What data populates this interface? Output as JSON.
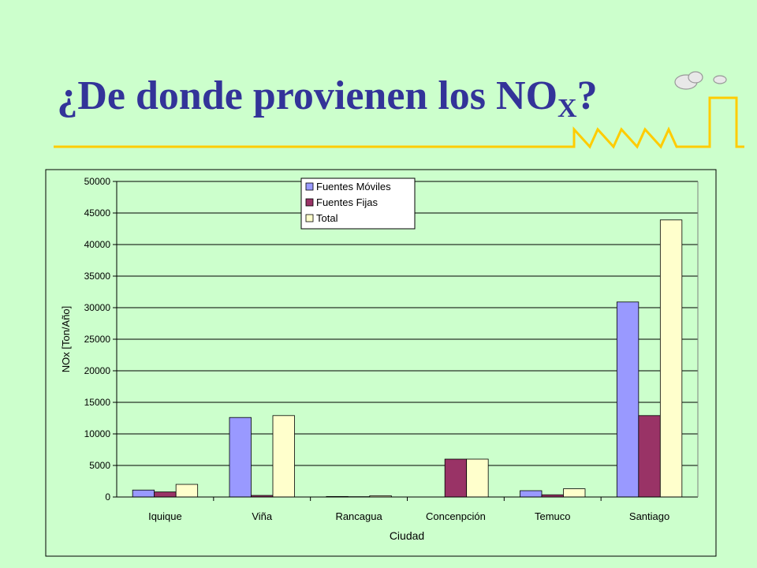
{
  "slide": {
    "title_main": "¿De donde provienen los NO",
    "title_sub": "X",
    "title_end": "?",
    "colors": {
      "background": "#ccffcc",
      "title": "#333399",
      "decor_line": "#ffcc00"
    }
  },
  "chart_data": {
    "type": "bar",
    "categories": [
      "Iquique",
      "Viña",
      "Rancagua",
      "Concenpción",
      "Temuco",
      "Santiago"
    ],
    "series": [
      {
        "name": "Fuentes Móviles",
        "color": "#9999ff",
        "values": [
          1100,
          12600,
          80,
          0,
          1000,
          30900
        ]
      },
      {
        "name": "Fuentes Fijas",
        "color": "#993366",
        "values": [
          800,
          250,
          50,
          6000,
          350,
          12900
        ]
      },
      {
        "name": "Total",
        "color": "#ffffcc",
        "values": [
          2000,
          12900,
          200,
          6000,
          1300,
          43900
        ]
      }
    ],
    "xlabel": "Ciudad",
    "ylabel": "NOx [Ton/Año]",
    "ylim": [
      0,
      50000
    ],
    "yticks": [
      "0",
      "5000",
      "10000",
      "15000",
      "20000",
      "25000",
      "30000",
      "35000",
      "40000",
      "45000",
      "50000"
    ],
    "grid": true,
    "legend": "top-center"
  }
}
